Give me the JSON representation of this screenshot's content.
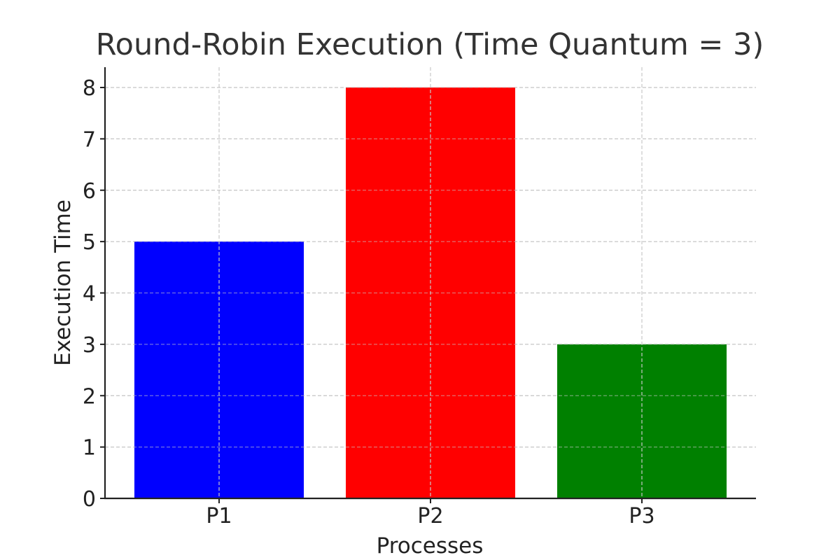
{
  "chart_data": {
    "type": "bar",
    "title": "Round-Robin Execution (Time Quantum = 3)",
    "xlabel": "Processes",
    "ylabel": "Execution Time",
    "categories": [
      "P1",
      "P2",
      "P3"
    ],
    "values": [
      5,
      8,
      3
    ],
    "colors": [
      "#0000ff",
      "#ff0000",
      "#008000"
    ],
    "ylim": [
      0,
      8.4
    ],
    "yticks": [
      0,
      1,
      2,
      3,
      4,
      5,
      6,
      7,
      8
    ],
    "grid": true,
    "grid_style": "dashed"
  }
}
